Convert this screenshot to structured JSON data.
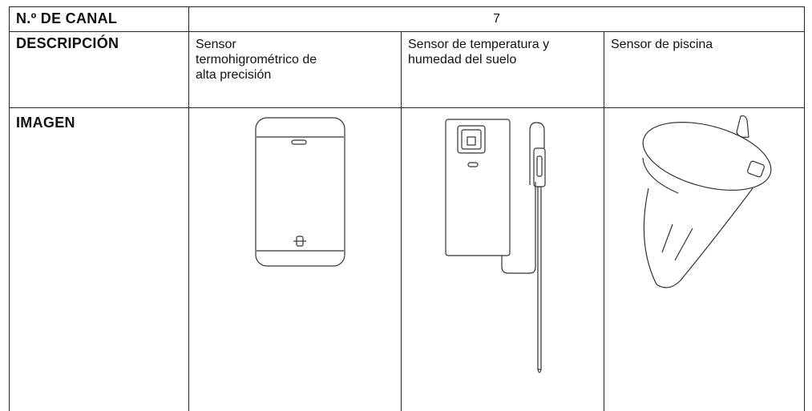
{
  "table": {
    "rows": [
      {
        "label": "N.º DE CANAL",
        "cells": [
          "7"
        ]
      },
      {
        "label": "DESCRIPCIÓN",
        "cells": [
          "Sensor termohigrométrico de alta precisión",
          "Sensor de temperatura y humedad del suelo",
          "Sensor de piscina"
        ]
      },
      {
        "label": "IMAGEN"
      }
    ]
  }
}
